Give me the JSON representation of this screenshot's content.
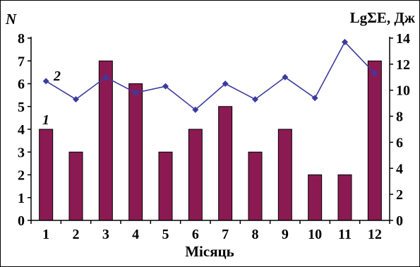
{
  "chart_data": {
    "type": "bar",
    "title": "",
    "xlabel": "Місяць",
    "ylabel": "N",
    "y2label": "LgΣE, Дж",
    "categories": [
      "1",
      "2",
      "3",
      "4",
      "5",
      "6",
      "7",
      "8",
      "9",
      "10",
      "11",
      "12"
    ],
    "ylim": [
      0,
      8
    ],
    "y2lim": [
      0,
      14
    ],
    "yticks": [
      "0",
      "1",
      "2",
      "3",
      "4",
      "5",
      "6",
      "7",
      "8"
    ],
    "y2ticks": [
      "0",
      "2",
      "4",
      "6",
      "8",
      "10",
      "12",
      "14"
    ],
    "grid": false,
    "series": [
      {
        "label": "1",
        "type": "bar",
        "axis": "left",
        "color": "#8B1A52",
        "values": [
          4,
          3,
          7,
          6,
          3,
          4,
          5,
          3,
          4,
          2,
          2,
          7
        ]
      },
      {
        "label": "2",
        "type": "line",
        "axis": "right",
        "color": "#3B3B9E",
        "values": [
          10.7,
          9.3,
          11.0,
          9.8,
          10.3,
          8.5,
          10.5,
          9.3,
          11.0,
          9.4,
          13.7,
          11.3
        ]
      }
    ]
  }
}
